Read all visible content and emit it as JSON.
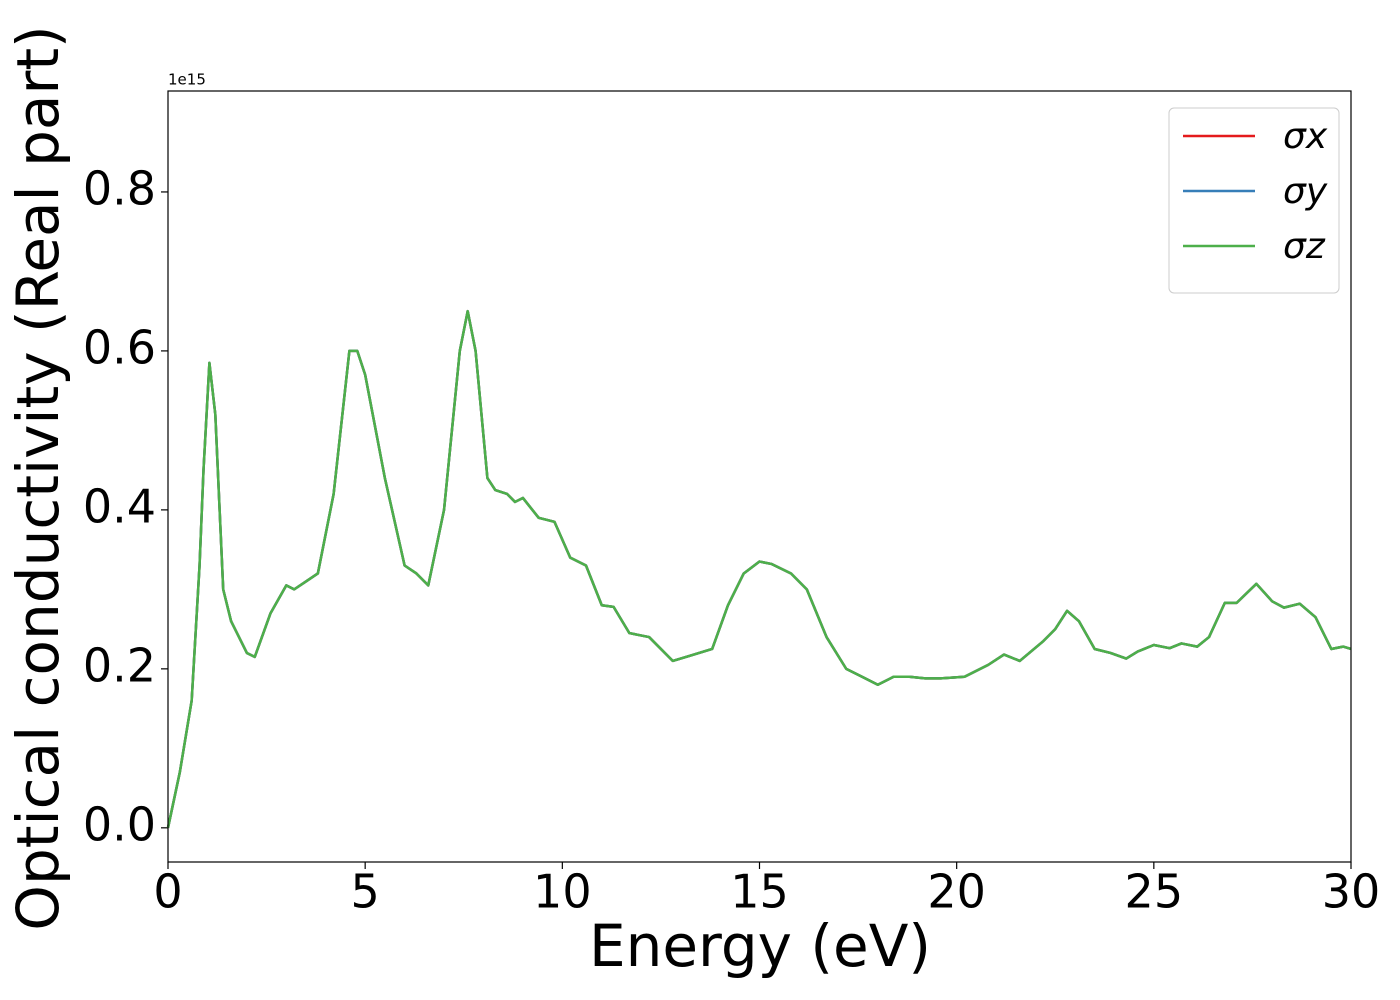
{
  "chart_data": {
    "type": "line",
    "xlabel": "Energy (eV)",
    "ylabel": "Optical conductivity (Real part)",
    "y_offset_label": "1e15",
    "x": [
      0,
      0.3,
      0.6,
      0.8,
      0.9,
      1.05,
      1.2,
      1.4,
      1.6,
      2.0,
      2.2,
      2.6,
      3.0,
      3.2,
      3.5,
      3.8,
      4.2,
      4.6,
      4.8,
      5.0,
      5.5,
      6.0,
      6.3,
      6.6,
      7.0,
      7.4,
      7.6,
      7.8,
      8.1,
      8.3,
      8.6,
      8.8,
      9.0,
      9.4,
      9.8,
      10.2,
      10.6,
      11.0,
      11.3,
      11.7,
      12.2,
      12.8,
      13.2,
      13.8,
      14.2,
      14.6,
      15.0,
      15.3,
      15.8,
      16.2,
      16.7,
      17.2,
      17.6,
      18.0,
      18.4,
      18.8,
      19.2,
      19.6,
      20.2,
      20.8,
      21.2,
      21.6,
      22.2,
      22.5,
      22.8,
      23.1,
      23.5,
      23.9,
      24.3,
      24.6,
      25.0,
      25.4,
      25.7,
      26.1,
      26.4,
      26.8,
      27.1,
      27.6,
      28.0,
      28.3,
      28.7,
      29.1,
      29.5,
      29.8,
      30.0
    ],
    "series": [
      {
        "name": "σx",
        "color": "#e41a1c",
        "values": [
          0,
          0.07,
          0.16,
          0.33,
          0.45,
          0.585,
          0.52,
          0.3,
          0.26,
          0.22,
          0.215,
          0.27,
          0.305,
          0.3,
          0.31,
          0.32,
          0.42,
          0.6,
          0.6,
          0.57,
          0.44,
          0.33,
          0.32,
          0.305,
          0.4,
          0.6,
          0.65,
          0.6,
          0.44,
          0.425,
          0.42,
          0.41,
          0.415,
          0.39,
          0.385,
          0.34,
          0.33,
          0.28,
          0.278,
          0.245,
          0.24,
          0.21,
          0.216,
          0.225,
          0.28,
          0.32,
          0.335,
          0.332,
          0.32,
          0.3,
          0.24,
          0.2,
          0.19,
          0.18,
          0.19,
          0.19,
          0.188,
          0.188,
          0.19,
          0.205,
          0.218,
          0.21,
          0.235,
          0.25,
          0.273,
          0.26,
          0.225,
          0.22,
          0.213,
          0.222,
          0.23,
          0.226,
          0.232,
          0.228,
          0.24,
          0.283,
          0.283,
          0.307,
          0.285,
          0.277,
          0.282,
          0.265,
          0.225,
          0.228,
          0.225
        ]
      },
      {
        "name": "σy",
        "color": "#377eb8",
        "values": [
          0,
          0.07,
          0.16,
          0.33,
          0.45,
          0.585,
          0.52,
          0.3,
          0.26,
          0.22,
          0.215,
          0.27,
          0.305,
          0.3,
          0.31,
          0.32,
          0.42,
          0.6,
          0.6,
          0.57,
          0.44,
          0.33,
          0.32,
          0.305,
          0.4,
          0.6,
          0.65,
          0.6,
          0.44,
          0.425,
          0.42,
          0.41,
          0.415,
          0.39,
          0.385,
          0.34,
          0.33,
          0.28,
          0.278,
          0.245,
          0.24,
          0.21,
          0.216,
          0.225,
          0.28,
          0.32,
          0.335,
          0.332,
          0.32,
          0.3,
          0.24,
          0.2,
          0.19,
          0.18,
          0.19,
          0.19,
          0.188,
          0.188,
          0.19,
          0.205,
          0.218,
          0.21,
          0.235,
          0.25,
          0.273,
          0.26,
          0.225,
          0.22,
          0.213,
          0.222,
          0.23,
          0.226,
          0.232,
          0.228,
          0.24,
          0.283,
          0.283,
          0.307,
          0.285,
          0.277,
          0.282,
          0.265,
          0.225,
          0.228,
          0.225
        ]
      },
      {
        "name": "σz",
        "color": "#4daf4a",
        "values": [
          0,
          0.07,
          0.16,
          0.33,
          0.45,
          0.585,
          0.52,
          0.3,
          0.26,
          0.22,
          0.215,
          0.27,
          0.305,
          0.3,
          0.31,
          0.32,
          0.42,
          0.6,
          0.6,
          0.57,
          0.44,
          0.33,
          0.32,
          0.305,
          0.4,
          0.6,
          0.65,
          0.6,
          0.44,
          0.425,
          0.42,
          0.41,
          0.415,
          0.39,
          0.385,
          0.34,
          0.33,
          0.28,
          0.278,
          0.245,
          0.24,
          0.21,
          0.216,
          0.225,
          0.28,
          0.32,
          0.335,
          0.332,
          0.32,
          0.3,
          0.24,
          0.2,
          0.19,
          0.18,
          0.19,
          0.19,
          0.188,
          0.188,
          0.19,
          0.205,
          0.218,
          0.21,
          0.235,
          0.25,
          0.273,
          0.26,
          0.225,
          0.22,
          0.213,
          0.222,
          0.23,
          0.226,
          0.232,
          0.228,
          0.24,
          0.283,
          0.283,
          0.307,
          0.285,
          0.277,
          0.282,
          0.265,
          0.225,
          0.228,
          0.225
        ]
      }
    ],
    "xlim": [
      0,
      30
    ],
    "xticks": [
      0,
      5,
      10,
      15,
      20,
      25,
      30
    ],
    "ylim": [
      -0.043,
      0.927
    ],
    "yticks": [
      {
        "value": 0,
        "label": "0.0"
      },
      0.2,
      0.4,
      0.6,
      0.8
    ],
    "grid": false,
    "legend": "upper right"
  }
}
